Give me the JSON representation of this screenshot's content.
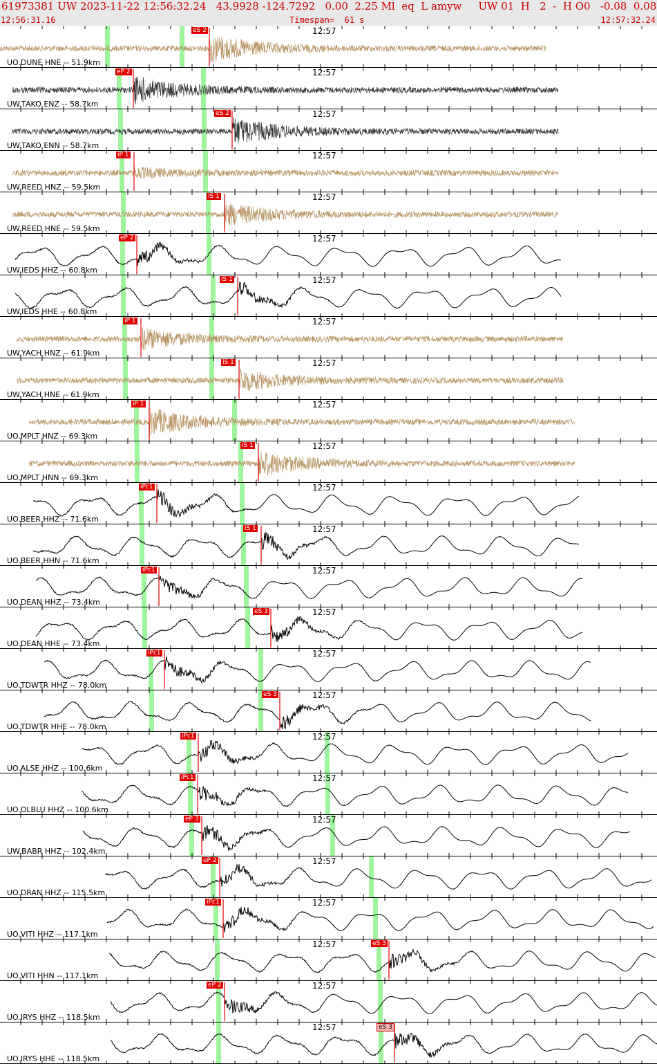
{
  "header": {
    "title": "61973381 UW 2023-11-22 12:56:32.24   43.9928 -124.7292   0.00  2.25 Ml  eq  L amyw     UW 01  H   2  -  H O0   -0.08  0.08",
    "start_time": "12:56:31.16",
    "timespan": "Timespan=  61 s",
    "end_time": "12:57:32.24"
  },
  "colors": {
    "header_text": "#cc0000",
    "header_bg": "#e8e8e8",
    "pick": "#e00000",
    "theoretical_marker": "#9ef59e",
    "trace_broadband": "#000000",
    "trace_strong_motion": "#b89464",
    "trace_short_period": "#333333"
  },
  "traces": [
    {
      "label": "UO.DUNE HNE -- 51.9km",
      "time": "12:57",
      "pick": "eS 2",
      "color": "#b89464"
    },
    {
      "label": "UW.TAKO ENZ -- 58.7km",
      "time": "12:57",
      "pick": "eP 2",
      "color": "#333333"
    },
    {
      "label": "UW.TAKO ENN -- 58.7km",
      "time": "12:57",
      "pick": "eS 2",
      "color": "#333333"
    },
    {
      "label": "UW.REED HNZ -- 59.5km",
      "time": "12:57",
      "pick": "iP 1",
      "color": "#b89464"
    },
    {
      "label": "UW.REED HNE -- 59.5km",
      "time": "12:57",
      "pick": "iS 1",
      "color": "#b89464"
    },
    {
      "label": "UW.IEDS HHZ -- 60.8km",
      "time": "12:57",
      "pick": "eP 2",
      "color": "#000000"
    },
    {
      "label": "UW.IEDS HHE -- 60.8km",
      "time": "12:57",
      "pick": "iS 1",
      "color": "#000000"
    },
    {
      "label": "UW.YACH HNZ -- 61.9km",
      "time": "12:57",
      "pick": "iP 1",
      "color": "#b89464"
    },
    {
      "label": "UW.YACH HNE -- 61.9km",
      "time": "12:57",
      "pick": "iS 1",
      "color": "#b89464"
    },
    {
      "label": "UO.MPLT HNZ -- 69.3km",
      "time": "12:57",
      "pick": "iP 1",
      "color": "#b89464"
    },
    {
      "label": "UO.MPLT HNN -- 69.3km",
      "time": "12:57",
      "pick": "iS 1",
      "color": "#b89464"
    },
    {
      "label": "UO.BEER HHZ -- 71.6km",
      "time": "12:57",
      "pick": "iPc1",
      "color": "#000000"
    },
    {
      "label": "UO.BEER HHN -- 71.6km",
      "time": "12:57",
      "pick": "iS 1",
      "color": "#000000"
    },
    {
      "label": "UO.DEAN HHZ -- 73.4km",
      "time": "12:57",
      "pick": "iPc1",
      "color": "#000000"
    },
    {
      "label": "UO.DEAN HHE -- 73.4km",
      "time": "12:57",
      "pick": "eS 3",
      "color": "#000000"
    },
    {
      "label": "UO.TDWTR HHZ -- 78.0km",
      "time": "12:57",
      "pick": "iPc1",
      "color": "#000000"
    },
    {
      "label": "UO.TDWTR HHE -- 78.0km",
      "time": "12:57",
      "pick": "eS 3",
      "color": "#000000"
    },
    {
      "label": "UO.ALSE HHZ -- 100.6km",
      "time": "12:57",
      "pick": "iPc1",
      "color": "#000000"
    },
    {
      "label": "UO.OLBLU HHZ -- 100.6km",
      "time": "12:57",
      "pick": "iPc1",
      "color": "#000000"
    },
    {
      "label": "UW.BABR HHZ -- 102.4km",
      "time": "12:57",
      "pick": "eP 3",
      "color": "#000000"
    },
    {
      "label": "UO.DRAN HHZ -- 115.5km",
      "time": "12:57",
      "pick": "eP 2",
      "color": "#000000"
    },
    {
      "label": "UO.VITI HHZ -- 117.1km",
      "time": "12:57",
      "pick": "iPc1",
      "color": "#000000"
    },
    {
      "label": "UO.VITI HHN -- 117.1km",
      "time": "12:57",
      "pick": "eS 3",
      "color": "#000000"
    },
    {
      "label": "UO.IRYS HHZ -- 118.5km",
      "time": "12:57",
      "pick": "eP 2",
      "color": "#000000"
    },
    {
      "label": "UO.IRYS HHE -- 118.5km",
      "time": "12:57",
      "pick": "eS 3",
      "color": "#000000"
    }
  ]
}
